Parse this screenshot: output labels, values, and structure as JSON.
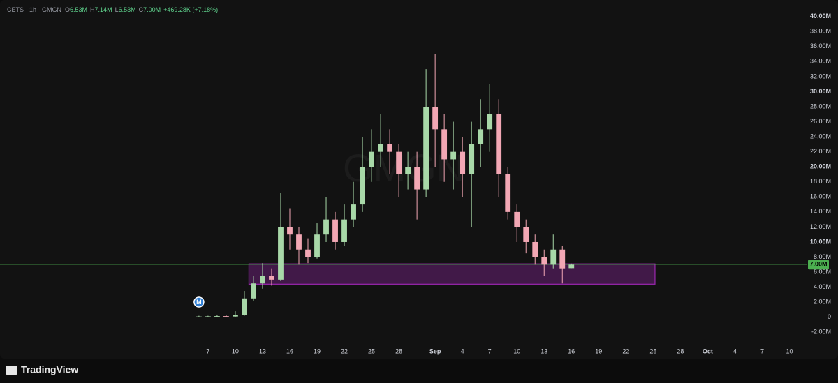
{
  "chart_data": {
    "type": "candlestick",
    "legend": {
      "symbol": "CETS · 1h · GMGN",
      "items": [
        {
          "label": "O",
          "value": "6.53M"
        },
        {
          "label": "H",
          "value": "7.14M"
        },
        {
          "label": "L",
          "value": "6.53M"
        },
        {
          "label": "C",
          "value": "7.00M"
        }
      ],
      "change": "+469.28K (+7.18%)"
    },
    "watermark": "GMGN",
    "marker": "M",
    "brand": "TradingView",
    "up_color": "#a8d8a8",
    "down_color": "#f2a7b4",
    "x": [
      6,
      7,
      8,
      9,
      10,
      11,
      12,
      13,
      14,
      15,
      16,
      17,
      18,
      19,
      20,
      21,
      22,
      23,
      24,
      25,
      26,
      27,
      28,
      29,
      30,
      31,
      32,
      33,
      34,
      35,
      36,
      37,
      38,
      39,
      40,
      41,
      42,
      43,
      44,
      45,
      46,
      47
    ],
    "open": [
      0.1,
      0.1,
      0.12,
      0.15,
      0.1,
      0.3,
      2.5,
      4.5,
      5.5,
      5,
      12,
      11,
      9,
      8,
      11,
      13,
      10,
      13,
      15,
      20,
      22,
      23,
      22,
      19,
      20,
      17,
      28,
      25,
      21,
      22,
      19,
      23,
      25,
      27,
      19,
      14,
      12,
      10,
      8,
      7,
      9,
      6.53
    ],
    "high": [
      0.2,
      0.2,
      0.3,
      0.25,
      0.8,
      3.5,
      5.5,
      7.2,
      6.5,
      16.5,
      14.5,
      12,
      10.5,
      12.5,
      16,
      14,
      15,
      18,
      24,
      25,
      27,
      25,
      23,
      22,
      22,
      33,
      35,
      27,
      26,
      24,
      26,
      29,
      31,
      29,
      20,
      15,
      13,
      11,
      9,
      11,
      9.5,
      7.14
    ],
    "low": [
      0.05,
      0.05,
      0.05,
      0.05,
      0.05,
      0.2,
      2.2,
      3.8,
      4.2,
      4.8,
      9,
      7,
      7.2,
      7.8,
      10,
      9,
      9.5,
      12,
      14,
      18,
      20,
      19,
      16,
      17,
      13,
      16,
      20,
      18,
      17,
      16,
      12,
      20,
      22,
      16,
      13,
      10,
      8.5,
      7,
      5.5,
      6.5,
      4.5,
      6.53
    ],
    "close": [
      0.1,
      0.12,
      0.15,
      0.1,
      0.3,
      2.5,
      4.5,
      5.5,
      5,
      12,
      11,
      9,
      8,
      11,
      13,
      10,
      13,
      15,
      20,
      22,
      23,
      22,
      19,
      20,
      17,
      28,
      25,
      21,
      22,
      19,
      23,
      25,
      27,
      19,
      14,
      12,
      10,
      8,
      7,
      9,
      6.5,
      7.0
    ],
    "zone": {
      "x": [
        11.5,
        56.2
      ],
      "y": [
        4.4,
        7.1
      ],
      "color": "#9c27b0"
    },
    "last_price": {
      "value": 7.0,
      "label": "7.00M",
      "color": "#4caf50"
    },
    "xlim": [
      -15.9,
      72.5
    ],
    "ylim": [
      -5.5,
      42.2
    ],
    "xticks": [
      {
        "value": 7,
        "label": "7"
      },
      {
        "value": 10,
        "label": "10"
      },
      {
        "value": 13,
        "label": "13"
      },
      {
        "value": 16,
        "label": "16"
      },
      {
        "value": 19,
        "label": "19"
      },
      {
        "value": 22,
        "label": "22"
      },
      {
        "value": 25,
        "label": "25"
      },
      {
        "value": 28,
        "label": "28"
      },
      {
        "value": 32,
        "label": "Sep"
      },
      {
        "value": 35,
        "label": "4"
      },
      {
        "value": 38,
        "label": "7"
      },
      {
        "value": 41,
        "label": "10"
      },
      {
        "value": 44,
        "label": "13"
      },
      {
        "value": 47,
        "label": "16"
      },
      {
        "value": 50,
        "label": "19"
      },
      {
        "value": 53,
        "label": "22"
      },
      {
        "value": 56,
        "label": "25"
      },
      {
        "value": 59,
        "label": "28"
      },
      {
        "value": 62,
        "label": "Oct"
      },
      {
        "value": 65,
        "label": "4"
      },
      {
        "value": 68,
        "label": "7"
      },
      {
        "value": 71,
        "label": "10"
      }
    ],
    "yticks": [
      {
        "value": -2,
        "label": "-2.00M"
      },
      0,
      {
        "value": 2,
        "label": "2.00M"
      },
      {
        "value": 4,
        "label": "4.00M"
      },
      {
        "value": 6,
        "label": "6.00M"
      },
      {
        "value": 8,
        "label": "8.00M"
      },
      {
        "value": 10,
        "label": "10.00M"
      },
      {
        "value": 12,
        "label": "12.00M"
      },
      {
        "value": 14,
        "label": "14.00M"
      },
      {
        "value": 16,
        "label": "16.00M"
      },
      {
        "value": 18,
        "label": "18.00M"
      },
      {
        "value": 20,
        "label": "20.00M"
      },
      {
        "value": 22,
        "label": "22.00M"
      },
      {
        "value": 24,
        "label": "24.00M"
      },
      {
        "value": 26,
        "label": "26.00M"
      },
      {
        "value": 28,
        "label": "28.00M"
      },
      {
        "value": 30,
        "label": "30.00M"
      },
      {
        "value": 32,
        "label": "32.00M"
      },
      {
        "value": 34,
        "label": "34.00M"
      },
      {
        "value": 36,
        "label": "36.00M"
      },
      {
        "value": 38,
        "label": "38.00M"
      },
      {
        "value": 40,
        "label": "40.00M"
      }
    ]
  }
}
